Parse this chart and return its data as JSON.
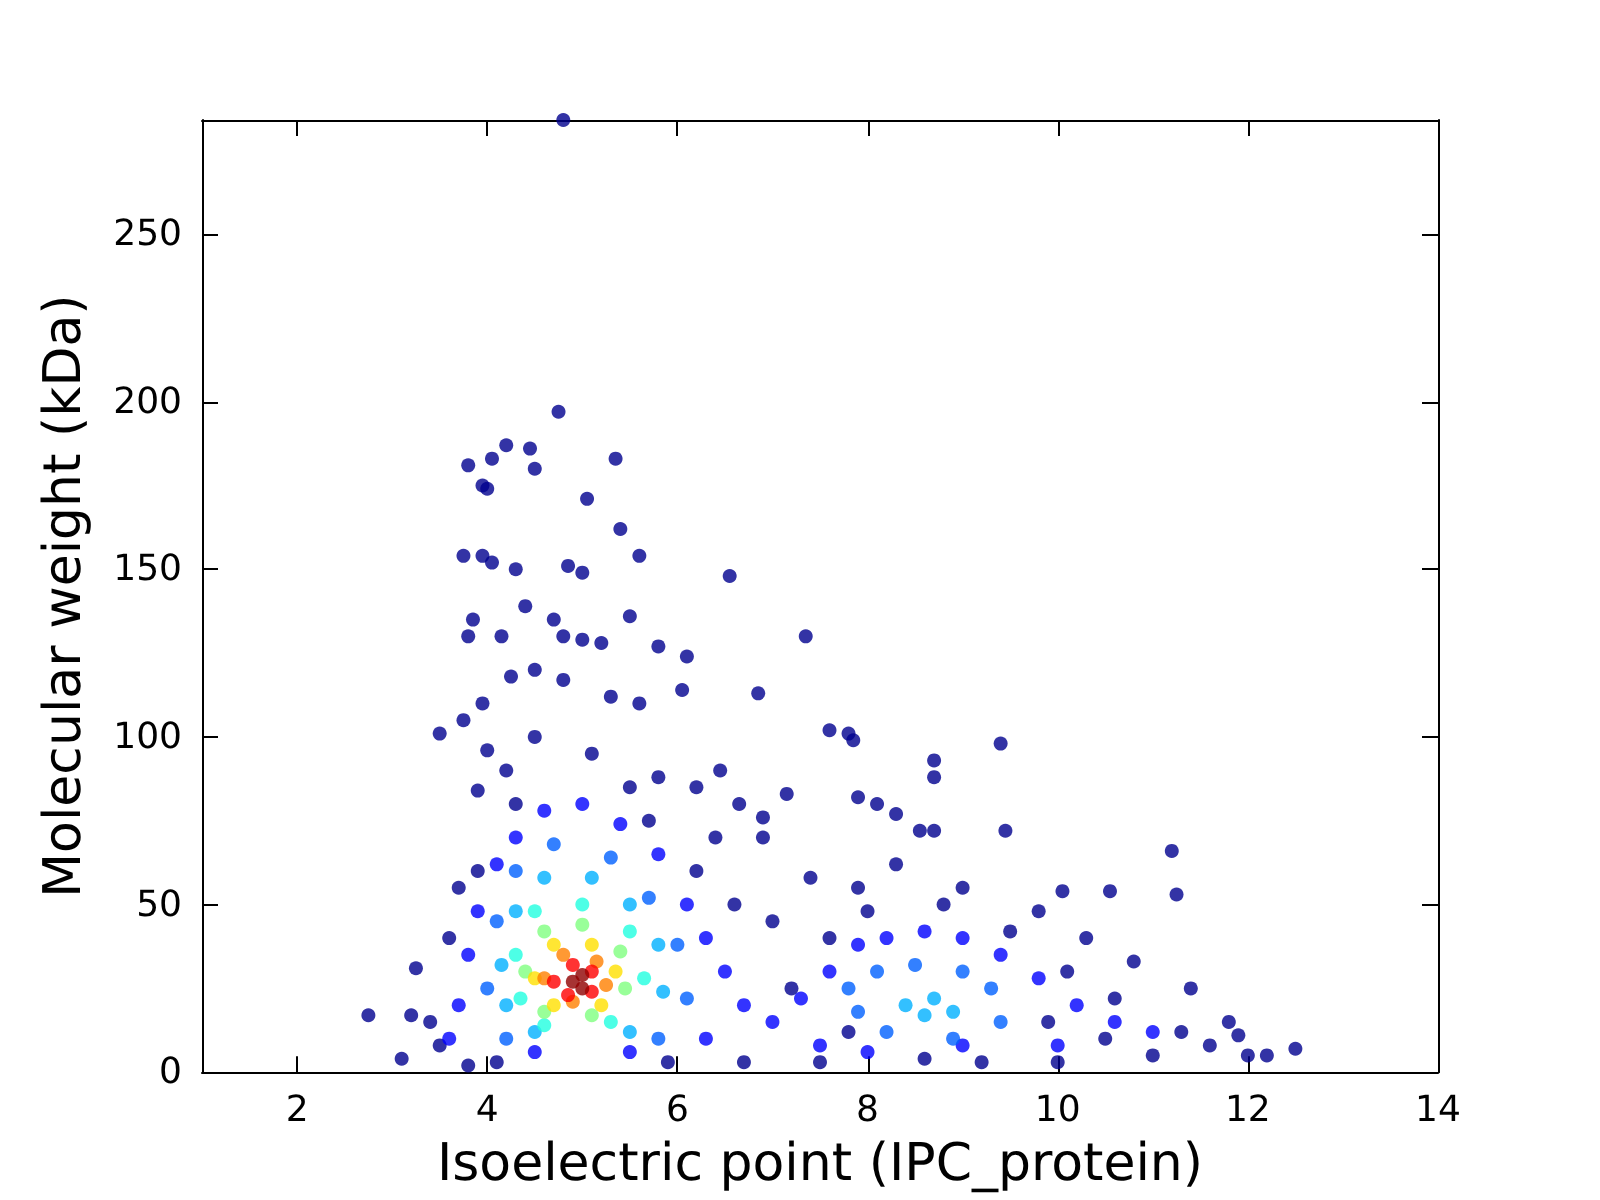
{
  "chart_data": {
    "type": "scatter",
    "xlabel": "Isoelectric point (IPC_protein)",
    "ylabel": "Molecular weight (kDa)",
    "xlim": [
      1,
      14
    ],
    "xticks": [
      2,
      4,
      6,
      8,
      10,
      12,
      14
    ],
    "ylim": [
      0,
      284
    ],
    "yticks": [
      0,
      50,
      100,
      150,
      200,
      250
    ],
    "grid": false,
    "marker": "circle",
    "series": [
      {
        "color": "#00008f",
        "x": [
          4.8,
          4.75,
          4.2,
          4.45,
          3.8,
          4.05,
          5.35,
          3.95,
          4.0,
          5.05,
          4.5,
          5.4,
          3.75,
          3.95,
          4.05,
          4.3,
          4.85,
          5.0,
          5.6,
          6.55,
          3.85,
          4.4,
          4.7,
          5.5,
          3.8,
          4.15,
          4.8,
          5.0,
          5.2,
          5.8,
          6.1,
          6.05,
          6.85,
          7.35,
          3.5,
          3.75,
          3.95,
          4.25,
          4.5,
          4.8,
          5.3,
          5.6,
          7.6,
          7.8,
          7.85,
          9.4,
          8.7,
          8.7,
          7.9,
          8.1,
          8.3,
          8.55,
          8.7,
          9.45,
          11.2,
          11.25,
          10.55,
          10.05,
          7.15,
          6.9,
          6.65,
          6.2,
          6.45,
          4.0,
          4.2,
          3.9,
          5.8,
          12.5,
          12.2,
          12.0,
          11.9,
          2.75,
          3.1,
          3.2,
          3.25,
          3.5,
          3.8,
          4.1,
          5.9,
          6.7,
          7.5,
          8.6,
          9.2,
          10.0,
          11.0,
          6.9,
          7.4,
          7.9,
          8.3,
          9.0,
          9.8,
          10.3,
          10.8,
          11.4,
          11.8,
          3.6,
          3.7,
          4.5,
          5.1,
          5.5,
          6.2,
          6.6,
          7.0,
          7.6,
          8.0,
          8.8,
          9.5,
          10.1,
          10.6,
          11.3,
          3.4,
          3.9,
          4.3,
          5.7,
          6.4,
          7.2,
          7.8,
          9.9,
          10.5,
          11.6
        ],
        "values": [
          284,
          197,
          187,
          186,
          181,
          183,
          183,
          175,
          174,
          171,
          180,
          162,
          154,
          154,
          152,
          150,
          151,
          149,
          154,
          148,
          135,
          139,
          135,
          136,
          130,
          130,
          130,
          129,
          128,
          127,
          124,
          114,
          113,
          130,
          101,
          105,
          110,
          118,
          120,
          117,
          112,
          110,
          102,
          101,
          99,
          98,
          93,
          88,
          82,
          80,
          77,
          72,
          72,
          72,
          66,
          53,
          54,
          54,
          83,
          76,
          80,
          85,
          90,
          96,
          90,
          84,
          88,
          7,
          5,
          5,
          11,
          17,
          4,
          17,
          31,
          8,
          2,
          3,
          3,
          3,
          3,
          4,
          3,
          3,
          5,
          70,
          58,
          55,
          62,
          55,
          48,
          40,
          33,
          25,
          15,
          40,
          55,
          100,
          95,
          85,
          60,
          50,
          45,
          40,
          48,
          50,
          42,
          30,
          22,
          12,
          15,
          60,
          80,
          75,
          70,
          25,
          12,
          15,
          10,
          8
        ]
      },
      {
        "color": "#0000ff",
        "x": [
          3.7,
          3.8,
          3.9,
          4.1,
          4.3,
          4.6,
          5.0,
          5.4,
          5.8,
          6.1,
          6.3,
          6.5,
          6.7,
          7.0,
          7.3,
          7.6,
          7.9,
          8.2,
          8.6,
          9.0,
          9.4,
          9.8,
          10.2,
          10.6,
          11.0,
          7.5,
          8.0,
          9.0,
          10.0,
          4.5,
          5.5,
          6.3,
          3.6
        ],
        "values": [
          20,
          35,
          48,
          62,
          70,
          78,
          80,
          74,
          65,
          50,
          40,
          30,
          20,
          15,
          22,
          30,
          38,
          40,
          42,
          40,
          35,
          28,
          20,
          15,
          12,
          8,
          6,
          8,
          8,
          6,
          6,
          10,
          10
        ]
      },
      {
        "color": "#0060ff",
        "x": [
          4.0,
          4.1,
          4.3,
          4.7,
          5.3,
          5.7,
          6.0,
          6.1,
          5.8,
          4.2,
          7.8,
          8.1,
          8.5,
          9.0,
          9.3,
          9.4,
          8.9,
          8.2,
          7.9
        ],
        "values": [
          25,
          45,
          60,
          68,
          64,
          52,
          38,
          22,
          10,
          10,
          25,
          30,
          32,
          30,
          25,
          15,
          10,
          12,
          18
        ]
      },
      {
        "color": "#00b0ff",
        "x": [
          4.15,
          4.3,
          4.6,
          5.1,
          5.5,
          5.8,
          5.85,
          5.5,
          4.5,
          4.2,
          8.4,
          8.7,
          8.6,
          8.9
        ],
        "values": [
          32,
          48,
          58,
          58,
          50,
          38,
          24,
          12,
          12,
          20,
          20,
          22,
          17,
          18
        ]
      },
      {
        "color": "#20ffe0",
        "x": [
          4.3,
          4.5,
          5.0,
          5.5,
          5.65,
          5.3,
          4.6,
          4.35
        ],
        "values": [
          35,
          48,
          50,
          42,
          28,
          15,
          14,
          22
        ]
      },
      {
        "color": "#80ff80",
        "x": [
          4.4,
          4.6,
          5.0,
          5.4,
          5.45,
          5.1,
          4.6
        ],
        "values": [
          30,
          42,
          44,
          36,
          25,
          17,
          18
        ]
      },
      {
        "color": "#ffe000",
        "x": [
          4.5,
          4.7,
          5.1,
          5.35,
          5.2,
          4.7
        ],
        "values": [
          28,
          38,
          38,
          30,
          20,
          20
        ]
      },
      {
        "color": "#ff8000",
        "x": [
          4.6,
          4.8,
          5.15,
          5.25,
          4.9
        ],
        "values": [
          28,
          35,
          33,
          26,
          21
        ]
      },
      {
        "color": "#ff0000",
        "x": [
          4.7,
          4.9,
          5.1,
          5.1,
          4.85
        ],
        "values": [
          27,
          32,
          30,
          24,
          23
        ]
      },
      {
        "color": "#900000",
        "x": [
          4.9,
          5.0,
          5.0
        ],
        "values": [
          27,
          29,
          25
        ]
      }
    ]
  }
}
